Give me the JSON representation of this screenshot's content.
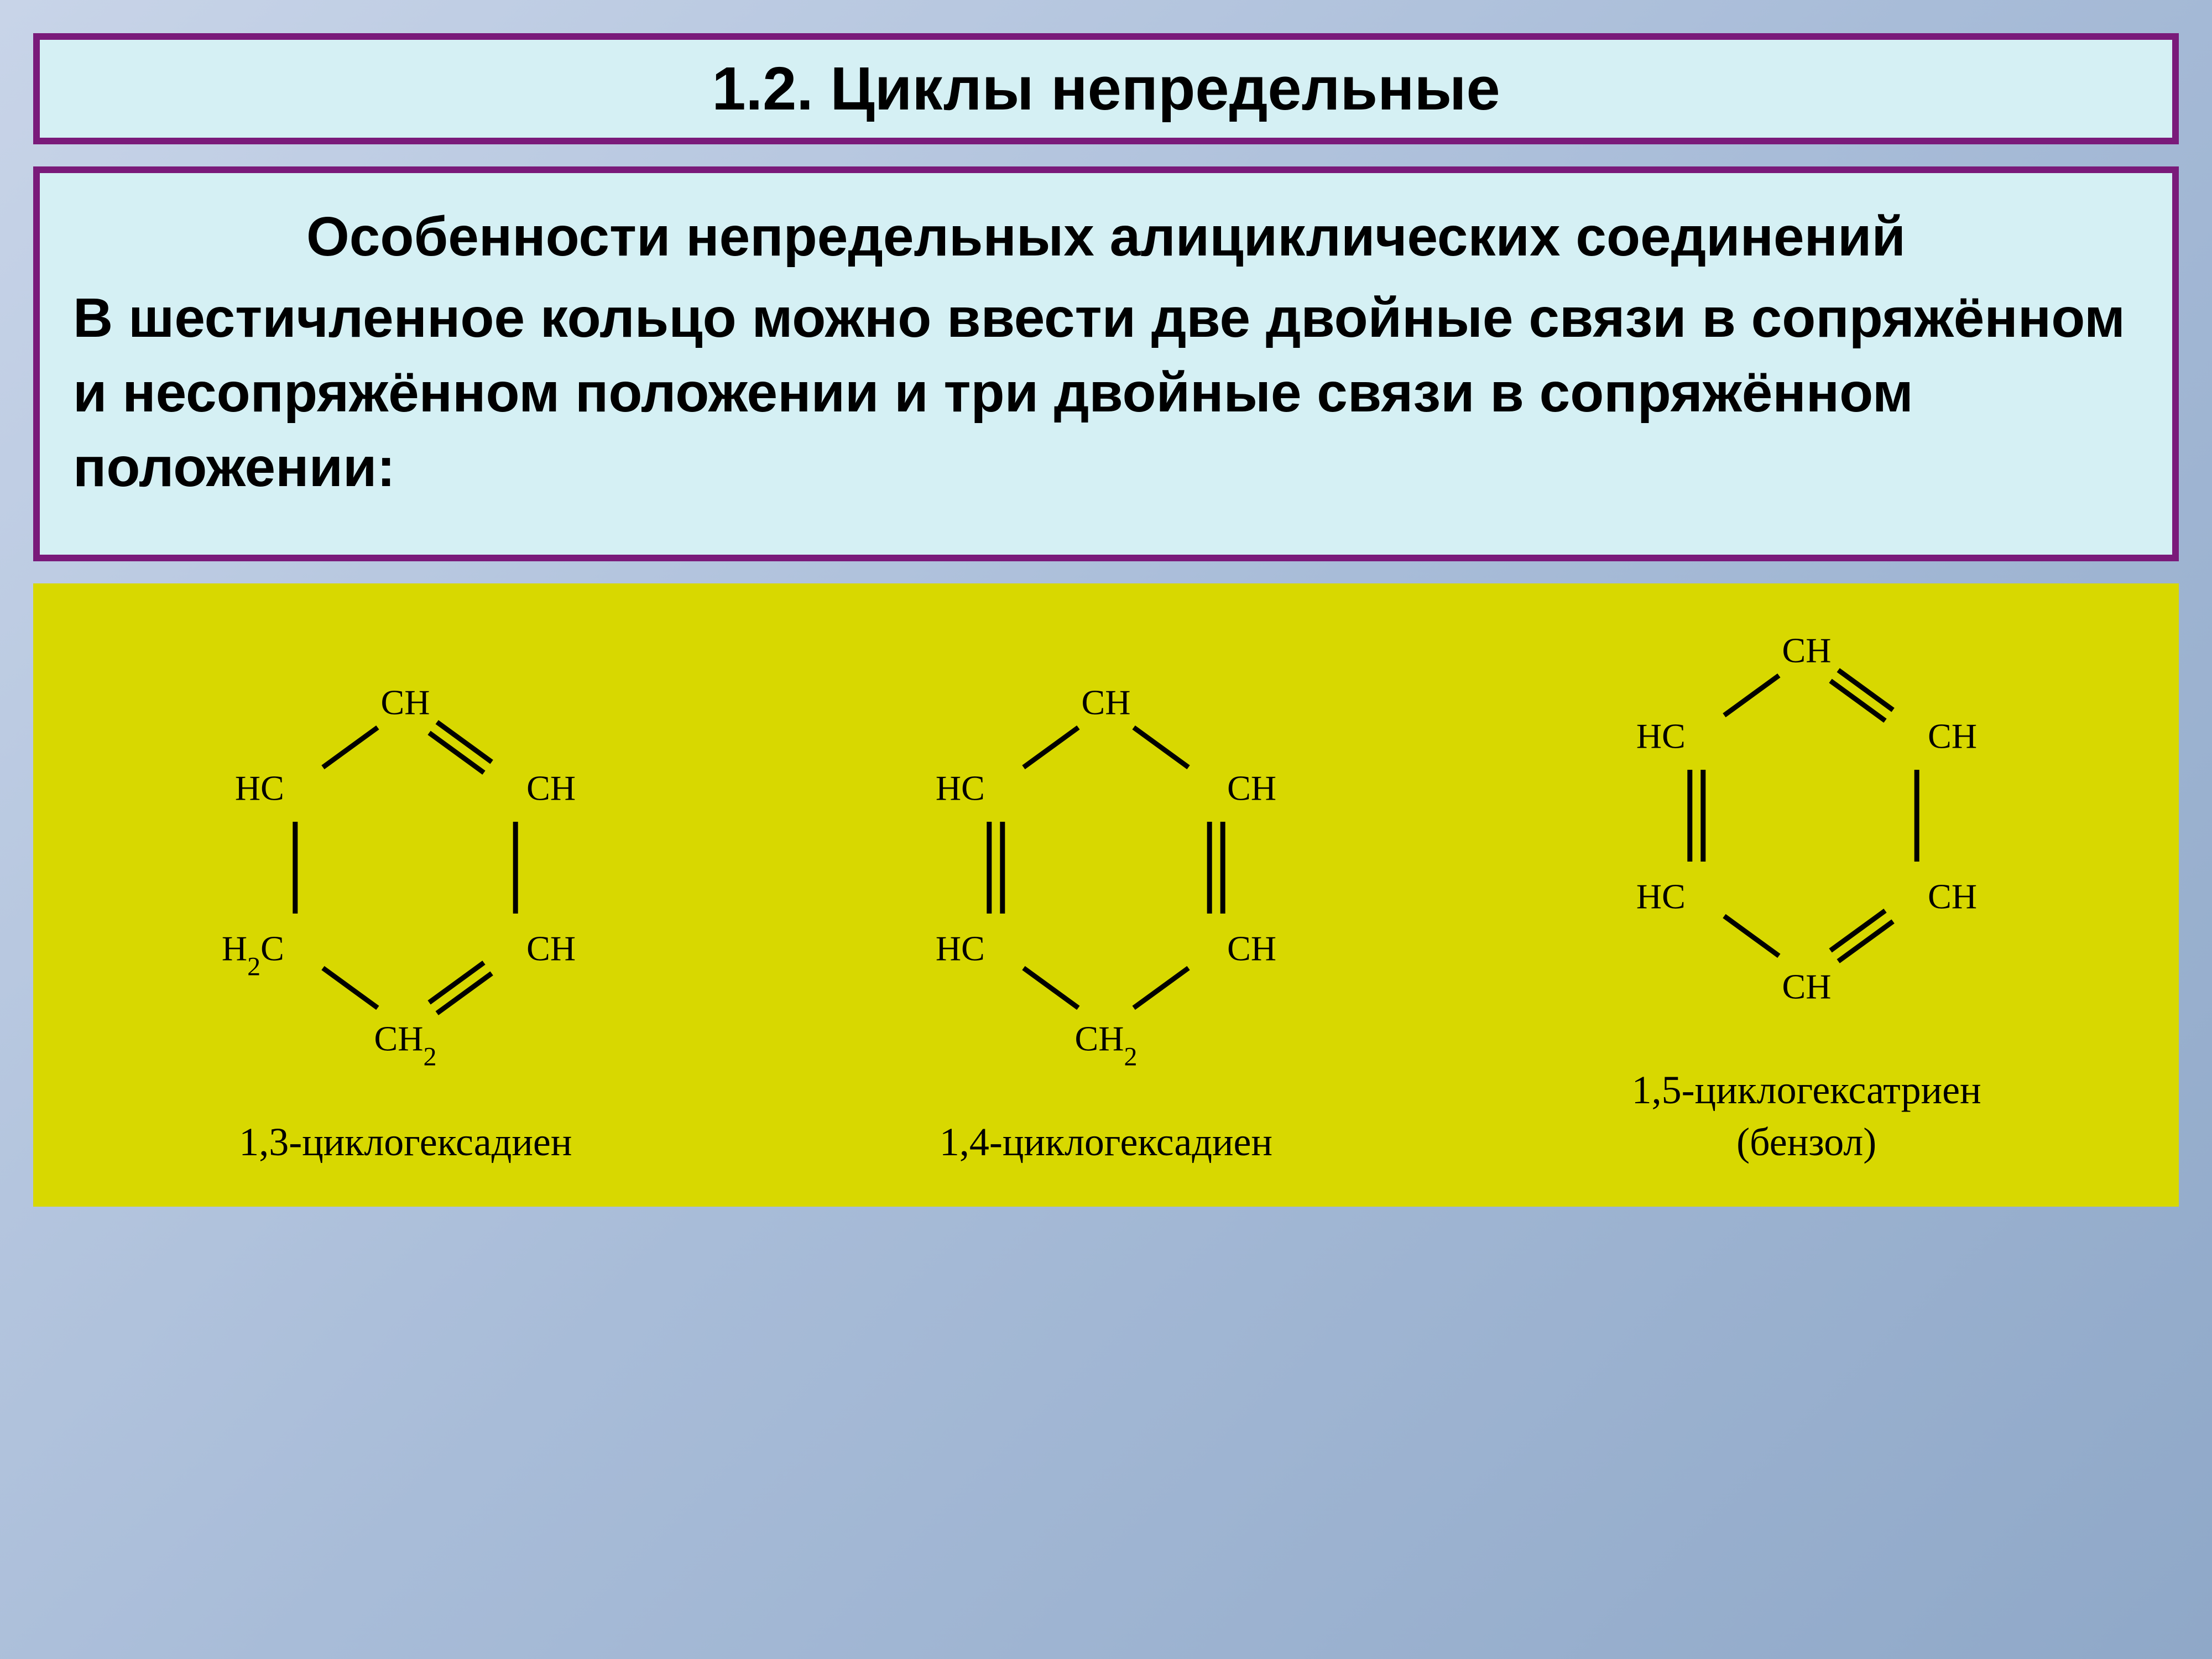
{
  "title": "1.2. Циклы непредельные",
  "subtitle": "Особенности непредельных алициклических соединений",
  "body": "В шестичленное кольцо можно ввести две двойные связи в сопряжённом и несопряжённом положении и три двойные связи в сопряжённом положении:",
  "molecules": [
    {
      "label": "1,3-циклогексадиен",
      "atoms": [
        "CH",
        "CH",
        "CH",
        "CH₂",
        "H₂C",
        "HC"
      ],
      "bonds": [
        {
          "from": 0,
          "to": 1,
          "double": true
        },
        {
          "from": 1,
          "to": 2,
          "double": false
        },
        {
          "from": 2,
          "to": 3,
          "double": true
        },
        {
          "from": 3,
          "to": 4,
          "double": false
        },
        {
          "from": 4,
          "to": 5,
          "double": false
        },
        {
          "from": 5,
          "to": 0,
          "double": false
        }
      ]
    },
    {
      "label": "1,4-циклогексадиен",
      "atoms": [
        "CH",
        "CH",
        "CH",
        "CH₂",
        "HC",
        "HC"
      ],
      "bonds": [
        {
          "from": 0,
          "to": 1,
          "double": false
        },
        {
          "from": 1,
          "to": 2,
          "double": true
        },
        {
          "from": 2,
          "to": 3,
          "double": false
        },
        {
          "from": 3,
          "to": 4,
          "double": false
        },
        {
          "from": 4,
          "to": 5,
          "double": true
        },
        {
          "from": 5,
          "to": 0,
          "double": false
        }
      ]
    },
    {
      "label": "1,5-циклогексатриен\n(бензол)",
      "atoms": [
        "CH",
        "CH",
        "CH",
        "CH",
        "HC",
        "HC"
      ],
      "bonds": [
        {
          "from": 0,
          "to": 1,
          "double": true
        },
        {
          "from": 1,
          "to": 2,
          "double": false
        },
        {
          "from": 2,
          "to": 3,
          "double": true
        },
        {
          "from": 3,
          "to": 4,
          "double": false
        },
        {
          "from": 4,
          "to": 5,
          "double": true
        },
        {
          "from": 5,
          "to": 0,
          "double": false
        }
      ]
    }
  ],
  "styling": {
    "background_gradient": [
      "#c8d4e8",
      "#a8bcd8",
      "#8fa8c8"
    ],
    "box_bg": "#d5f0f4",
    "box_border": "#7a1a7a",
    "diagram_bg": "#d8d800",
    "text_color": "#000000",
    "bond_color": "#000000",
    "atom_font": "Times New Roman",
    "title_fontsize": 110,
    "body_fontsize": 100,
    "label_fontsize": 72,
    "atom_fontsize": 64
  }
}
